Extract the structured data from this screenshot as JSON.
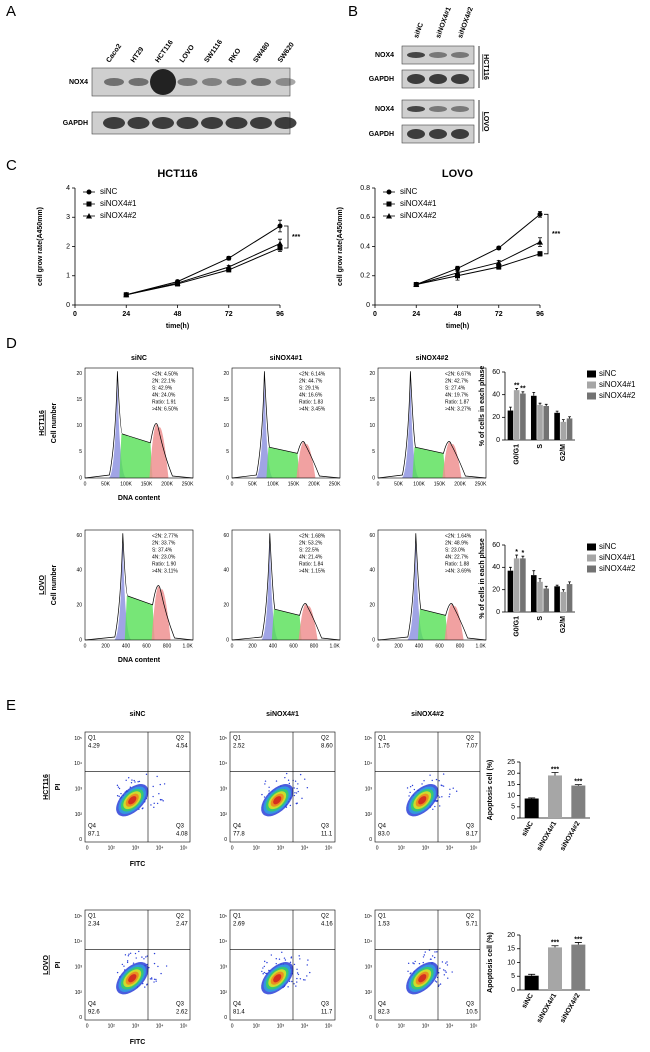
{
  "panel_labels": [
    "A",
    "B",
    "C",
    "D",
    "E"
  ],
  "blot_a": {
    "lanes": [
      "Caco2",
      "HT29",
      "HCT116",
      "LOVO",
      "SW1116",
      "RKO",
      "SW480",
      "SW620"
    ],
    "rows": [
      "NOX4",
      "GAPDH"
    ]
  },
  "blot_b": {
    "lanes": [
      "siNC",
      "siNOX4#1",
      "siNOX4#2"
    ],
    "groups": [
      {
        "cell": "HCT116",
        "rows": [
          "NOX4",
          "GAPDH"
        ]
      },
      {
        "cell": "LOVO",
        "rows": [
          "NOX4",
          "GAPDH"
        ]
      }
    ]
  },
  "chart_data": [
    {
      "type": "line",
      "title": "HCT116",
      "x_label": "time(h)",
      "y_label": "cell grow rate(A450mm)",
      "x": [
        24,
        48,
        72,
        96
      ],
      "xlim": [
        0,
        96
      ],
      "xticks": [
        0,
        24,
        48,
        72,
        96
      ],
      "ylim": [
        0,
        4
      ],
      "yticks": [
        0,
        1,
        2,
        3,
        4
      ],
      "legend": "upper left",
      "annotations": [
        "***"
      ],
      "series": [
        {
          "name": "siNC",
          "marker": "circle",
          "color": "#000000",
          "values": [
            0.35,
            0.8,
            1.6,
            2.7
          ],
          "errors": [
            0.03,
            0.05,
            0.06,
            0.2
          ]
        },
        {
          "name": "siNOX4#1",
          "marker": "square",
          "color": "#000000",
          "values": [
            0.35,
            0.72,
            1.2,
            1.95
          ],
          "errors": [
            0.03,
            0.05,
            0.05,
            0.12
          ]
        },
        {
          "name": "siNOX4#2",
          "marker": "triangle",
          "color": "#000000",
          "values": [
            0.35,
            0.75,
            1.3,
            2.1
          ],
          "errors": [
            0.03,
            0.05,
            0.05,
            0.15
          ]
        }
      ]
    },
    {
      "type": "line",
      "title": "LOVO",
      "x_label": "time(h)",
      "y_label": "cell grow rate(A450mm)",
      "x": [
        24,
        48,
        72,
        96
      ],
      "xlim": [
        0,
        96
      ],
      "xticks": [
        0,
        24,
        48,
        72,
        96
      ],
      "ylim": [
        0,
        0.8
      ],
      "yticks": [
        0,
        0.2,
        0.4,
        0.6,
        0.8
      ],
      "legend": "upper left",
      "annotations": [
        "***"
      ],
      "series": [
        {
          "name": "siNC",
          "marker": "circle",
          "color": "#000000",
          "values": [
            0.14,
            0.25,
            0.39,
            0.62
          ],
          "errors": [
            0.01,
            0.015,
            0.01,
            0.02
          ]
        },
        {
          "name": "siNOX4#1",
          "marker": "square",
          "color": "#000000",
          "values": [
            0.14,
            0.2,
            0.26,
            0.35
          ],
          "errors": [
            0.01,
            0.03,
            0.015,
            0.015
          ]
        },
        {
          "name": "siNOX4#2",
          "marker": "triangle",
          "color": "#000000",
          "values": [
            0.14,
            0.22,
            0.29,
            0.43
          ],
          "errors": [
            0.01,
            0.03,
            0.015,
            0.03
          ]
        }
      ]
    },
    {
      "type": "bar",
      "y_label": "% of cells in each phase",
      "categories": [
        "G0/G1",
        "S",
        "G2/M"
      ],
      "ylim": [
        0,
        60
      ],
      "yticks": [
        0,
        20,
        40,
        60
      ],
      "legend": "right",
      "annotations": [
        "**",
        "**"
      ],
      "series": [
        {
          "name": "siNC",
          "color": "#000000",
          "values": [
            26,
            39,
            24
          ],
          "errors": [
            3,
            3,
            1.5
          ]
        },
        {
          "name": "siNOX4#1",
          "color": "#a6a6a6",
          "values": [
            44,
            31,
            16
          ],
          "errors": [
            1.5,
            1.5,
            2
          ]
        },
        {
          "name": "siNOX4#2",
          "color": "#737373",
          "values": [
            41,
            30,
            19
          ],
          "errors": [
            1.5,
            1.5,
            1.5
          ]
        }
      ]
    },
    {
      "type": "bar",
      "y_label": "% of cells in each phase",
      "categories": [
        "G0/G1",
        "S",
        "G2/M"
      ],
      "ylim": [
        0,
        60
      ],
      "yticks": [
        0,
        20,
        40,
        60
      ],
      "legend": "right",
      "annotations": [
        "*",
        "*"
      ],
      "series": [
        {
          "name": "siNC",
          "color": "#000000",
          "values": [
            37,
            33,
            23
          ],
          "errors": [
            3,
            4,
            1
          ]
        },
        {
          "name": "siNOX4#1",
          "color": "#a6a6a6",
          "values": [
            48,
            27,
            18
          ],
          "errors": [
            3,
            3,
            2
          ]
        },
        {
          "name": "siNOX4#2",
          "color": "#737373",
          "values": [
            48,
            21,
            25
          ],
          "errors": [
            2,
            2,
            2
          ]
        }
      ]
    },
    {
      "type": "bar",
      "y_label": "Apoptosis cell (%)",
      "categories": [
        "siNC",
        "siNOX4#1",
        "siNOX4#2"
      ],
      "values": [
        8.7,
        19,
        14.5
      ],
      "errors": [
        0.3,
        1.3,
        0.4
      ],
      "colors": [
        "#000000",
        "#a6a6a6",
        "#808080"
      ],
      "ylim": [
        0,
        25
      ],
      "yticks": [
        0,
        5,
        10,
        15,
        20,
        25
      ],
      "annotations": [
        "***",
        "***"
      ]
    },
    {
      "type": "bar",
      "y_label": "Apoptosis cell (%)",
      "categories": [
        "siNC",
        "siNOX4#1",
        "siNOX4#2"
      ],
      "values": [
        5.2,
        15.5,
        16.5
      ],
      "errors": [
        0.5,
        0.6,
        0.8
      ],
      "colors": [
        "#000000",
        "#a6a6a6",
        "#808080"
      ],
      "ylim": [
        0,
        20
      ],
      "yticks": [
        0,
        5,
        10,
        15,
        20
      ],
      "annotations": [
        "***",
        "***"
      ]
    }
  ],
  "cell_cycle": {
    "titles": [
      "siNC",
      "siNOX4#1",
      "siNOX4#2"
    ],
    "y_label": "Cell number",
    "x_label": "DNA content",
    "rows": [
      {
        "cell": "HCT116",
        "yticks": [
          0,
          5,
          10,
          15,
          20
        ],
        "xticks": [
          "0",
          "50K",
          "100K",
          "150K",
          "200K",
          "250K"
        ],
        "stats": [
          [
            "<2N: 4.50%",
            "2N: 22.1%",
            "S: 42.9%",
            "4N: 24.0%",
            "Ratio: 1.91",
            ">4N: 6.50%"
          ],
          [
            "<2N: 6.14%",
            "2N: 44.7%",
            "S: 29.1%",
            "4N: 16.6%",
            "Ratio: 1.83",
            ">4N: 3.45%"
          ],
          [
            "<2N: 6.67%",
            "2N: 42.7%",
            "S: 27.4%",
            "4N: 19.7%",
            "Ratio: 1.87",
            ">4N: 3.27%"
          ]
        ]
      },
      {
        "cell": "LOVO",
        "yticks": [
          0,
          20,
          40,
          60
        ],
        "xticks": [
          "0",
          "200",
          "400",
          "600",
          "800",
          "1.0K"
        ],
        "stats": [
          [
            "<2N: 2.77%",
            "2N: 33.7%",
            "S: 37.4%",
            "4N: 23.0%",
            "Ratio: 1.90",
            ">4N: 3.11%"
          ],
          [
            "<2N: 1.68%",
            "2N: 53.2%",
            "S: 22.5%",
            "4N: 21.4%",
            "Ratio: 1.84",
            ">4N: 1.15%"
          ],
          [
            "<2N: 1.64%",
            "2N: 48.9%",
            "S: 23.0%",
            "4N: 22.7%",
            "Ratio: 1.88",
            ">4N: 3.69%"
          ]
        ]
      }
    ]
  },
  "apoptosis": {
    "titles": [
      "siNC",
      "siNOX4#1",
      "siNOX4#2"
    ],
    "y_label": "PI",
    "x_label": "FITC",
    "quadrant_names": [
      "Q1",
      "Q2",
      "Q3",
      "Q4"
    ],
    "ticks": [
      "0",
      "10²",
      "10³",
      "10⁴",
      "10⁵"
    ],
    "rows": [
      {
        "cell": "HCT116",
        "quadrants": [
          [
            "4.29",
            "4.54",
            "4.08",
            "87.1"
          ],
          [
            "2.52",
            "8.60",
            "11.1",
            "77.8"
          ],
          [
            "1.75",
            "7.07",
            "8.17",
            "83.0"
          ]
        ]
      },
      {
        "cell": "LOVO",
        "quadrants": [
          [
            "2.34",
            "2.47",
            "2.62",
            "92.6"
          ],
          [
            "2.69",
            "4.16",
            "11.7",
            "81.4"
          ],
          [
            "1.53",
            "5.71",
            "10.5",
            "82.3"
          ]
        ]
      }
    ]
  }
}
